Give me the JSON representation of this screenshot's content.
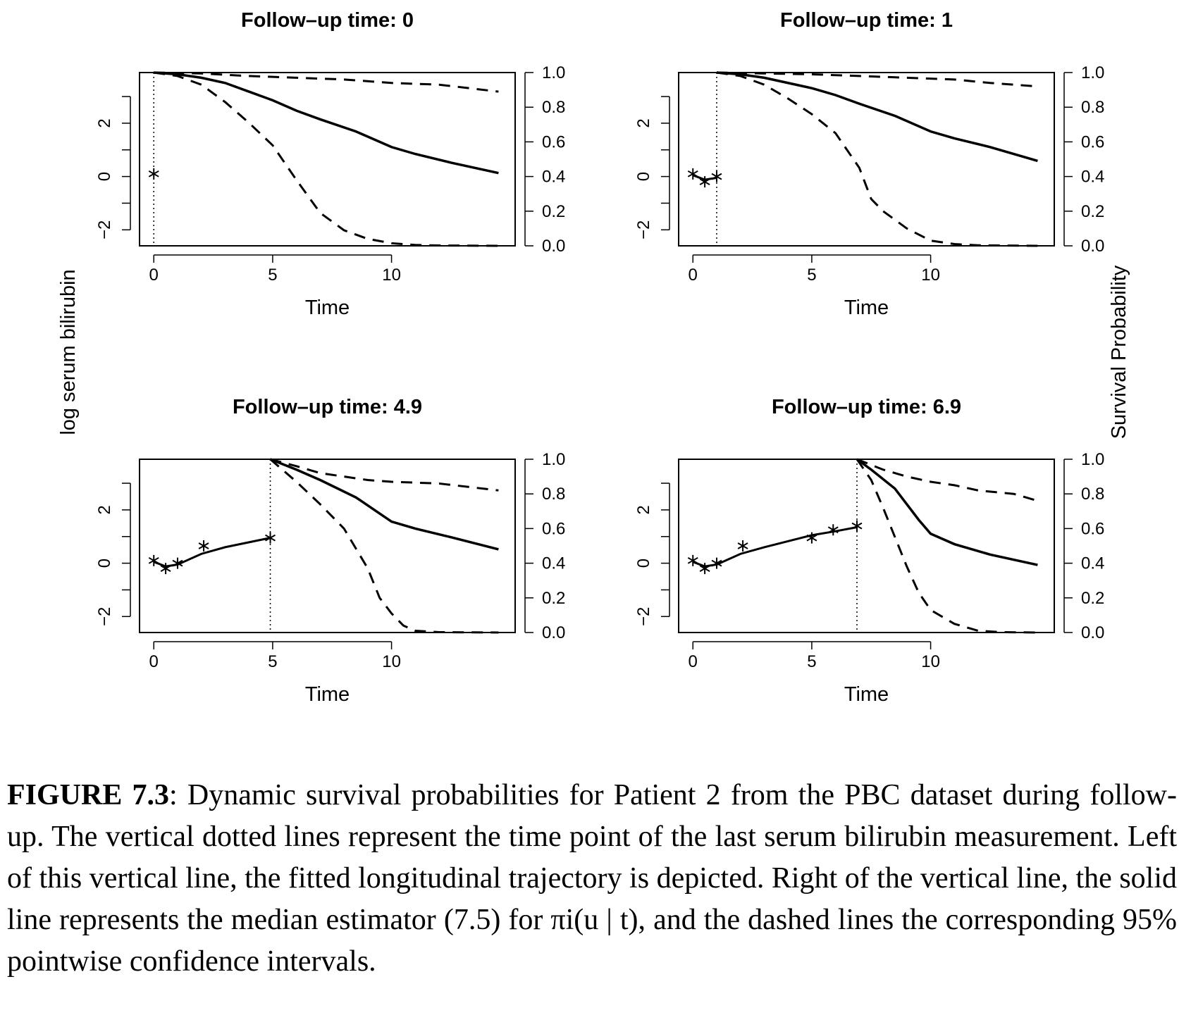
{
  "y_left_label": "log serum bilirubin",
  "y_right_label": "Survival Probability",
  "caption": {
    "label": "FIGURE 7.3",
    "text": ": Dynamic survival probabilities for Patient 2 from the PBC dataset during follow-up. The vertical dotted lines represent the time point of the last serum bilirubin measurement. Left of this vertical line, the fitted longitudinal trajectory is depicted. Right of the vertical line, the solid line represents the median estimator (7.5) for πi(u | t), and the dashed lines the corresponding 95% pointwise confidence intervals."
  },
  "chart_data": [
    {
      "type": "line",
      "title": "Follow–up time: 0",
      "xlabel": "Time",
      "xlim": [
        -0.6,
        15.2
      ],
      "ylim_left": [
        -2.6,
        3.9
      ],
      "ylim_right": [
        0,
        1
      ],
      "x_ticks": [
        "0",
        "5",
        "10"
      ],
      "y_left_ticks": [
        "−2",
        "0",
        "2"
      ],
      "y_right_ticks": [
        "0.0",
        "0.2",
        "0.4",
        "0.6",
        "0.8",
        "1.0"
      ],
      "followup_time": 0,
      "observations": [
        [
          0,
          0.1
        ]
      ],
      "fitted_trajectory": [],
      "survival_median": [
        [
          0,
          1.0
        ],
        [
          1,
          0.99
        ],
        [
          2,
          0.97
        ],
        [
          3,
          0.94
        ],
        [
          4,
          0.89
        ],
        [
          5,
          0.84
        ],
        [
          6,
          0.78
        ],
        [
          7,
          0.73
        ],
        [
          8.5,
          0.66
        ],
        [
          10,
          0.57
        ],
        [
          11,
          0.53
        ],
        [
          12.5,
          0.48
        ],
        [
          14.5,
          0.42
        ]
      ],
      "survival_lower": [
        [
          0,
          1.0
        ],
        [
          1,
          0.98
        ],
        [
          2,
          0.93
        ],
        [
          3,
          0.83
        ],
        [
          4,
          0.71
        ],
        [
          5,
          0.58
        ],
        [
          6,
          0.38
        ],
        [
          7,
          0.19
        ],
        [
          8,
          0.09
        ],
        [
          9,
          0.04
        ],
        [
          10,
          0.015
        ],
        [
          11,
          0.005
        ],
        [
          12,
          0.002
        ],
        [
          14.5,
          0.0
        ]
      ],
      "survival_upper": [
        [
          0,
          1.0
        ],
        [
          2,
          0.995
        ],
        [
          4,
          0.98
        ],
        [
          6,
          0.97
        ],
        [
          8,
          0.96
        ],
        [
          10,
          0.94
        ],
        [
          12,
          0.93
        ],
        [
          14.5,
          0.89
        ]
      ]
    },
    {
      "type": "line",
      "title": "Follow–up time: 1",
      "xlabel": "Time",
      "xlim": [
        -0.6,
        15.2
      ],
      "ylim_left": [
        -2.6,
        3.9
      ],
      "ylim_right": [
        0,
        1
      ],
      "x_ticks": [
        "0",
        "5",
        "10"
      ],
      "y_left_ticks": [
        "−2",
        "0",
        "2"
      ],
      "y_right_ticks": [
        "0.0",
        "0.2",
        "0.4",
        "0.6",
        "0.8",
        "1.0"
      ],
      "followup_time": 1,
      "observations": [
        [
          0,
          0.1
        ],
        [
          0.5,
          -0.2
        ],
        [
          1,
          0.0
        ]
      ],
      "fitted_trajectory": [
        [
          0,
          0.05
        ],
        [
          0.5,
          -0.12
        ],
        [
          1,
          -0.05
        ]
      ],
      "survival_median": [
        [
          1,
          1.0
        ],
        [
          2,
          0.99
        ],
        [
          3,
          0.97
        ],
        [
          4,
          0.94
        ],
        [
          5,
          0.91
        ],
        [
          6,
          0.87
        ],
        [
          7,
          0.82
        ],
        [
          8.5,
          0.75
        ],
        [
          10,
          0.66
        ],
        [
          11,
          0.62
        ],
        [
          12.5,
          0.57
        ],
        [
          14.5,
          0.49
        ]
      ],
      "survival_lower": [
        [
          1,
          1.0
        ],
        [
          2,
          0.98
        ],
        [
          3,
          0.93
        ],
        [
          4,
          0.85
        ],
        [
          5,
          0.76
        ],
        [
          6,
          0.65
        ],
        [
          7,
          0.45
        ],
        [
          7.5,
          0.27
        ],
        [
          8,
          0.2
        ],
        [
          9,
          0.1
        ],
        [
          10,
          0.03
        ],
        [
          11,
          0.01
        ],
        [
          12,
          0.003
        ],
        [
          14.5,
          0.0
        ]
      ],
      "survival_upper": [
        [
          1,
          1.0
        ],
        [
          3,
          0.995
        ],
        [
          5,
          0.99
        ],
        [
          7,
          0.98
        ],
        [
          9,
          0.97
        ],
        [
          11,
          0.96
        ],
        [
          12.5,
          0.94
        ],
        [
          14.5,
          0.92
        ]
      ]
    },
    {
      "type": "line",
      "title": "Follow–up time: 4.9",
      "xlabel": "Time",
      "xlim": [
        -0.6,
        15.2
      ],
      "ylim_left": [
        -2.6,
        3.9
      ],
      "ylim_right": [
        0,
        1
      ],
      "x_ticks": [
        "0",
        "5",
        "10"
      ],
      "y_left_ticks": [
        "−2",
        "0",
        "2"
      ],
      "y_right_ticks": [
        "0.0",
        "0.2",
        "0.4",
        "0.6",
        "0.8",
        "1.0"
      ],
      "followup_time": 4.9,
      "observations": [
        [
          0,
          0.1
        ],
        [
          0.5,
          -0.2
        ],
        [
          1,
          0.0
        ],
        [
          2.1,
          0.65
        ],
        [
          4.9,
          0.95
        ]
      ],
      "fitted_trajectory": [
        [
          0,
          0.05
        ],
        [
          0.5,
          -0.12
        ],
        [
          1,
          -0.05
        ],
        [
          2,
          0.35
        ],
        [
          3,
          0.6
        ],
        [
          4.9,
          0.95
        ]
      ],
      "survival_median": [
        [
          4.9,
          1.0
        ],
        [
          6,
          0.94
        ],
        [
          7,
          0.88
        ],
        [
          8.5,
          0.78
        ],
        [
          10,
          0.64
        ],
        [
          11,
          0.6
        ],
        [
          12.5,
          0.55
        ],
        [
          14.5,
          0.48
        ]
      ],
      "survival_lower": [
        [
          4.9,
          1.0
        ],
        [
          6,
          0.87
        ],
        [
          7,
          0.74
        ],
        [
          8,
          0.6
        ],
        [
          9,
          0.37
        ],
        [
          9.5,
          0.2
        ],
        [
          10,
          0.11
        ],
        [
          10.5,
          0.04
        ],
        [
          11,
          0.01
        ],
        [
          12,
          0.002
        ],
        [
          14.5,
          0.0
        ]
      ],
      "survival_upper": [
        [
          4.9,
          1.0
        ],
        [
          6,
          0.96
        ],
        [
          7,
          0.92
        ],
        [
          8,
          0.9
        ],
        [
          9,
          0.88
        ],
        [
          10,
          0.87
        ],
        [
          12,
          0.86
        ],
        [
          14.5,
          0.82
        ]
      ]
    },
    {
      "type": "line",
      "title": "Follow–up time: 6.9",
      "xlabel": "Time",
      "xlim": [
        -0.6,
        15.2
      ],
      "ylim_left": [
        -2.6,
        3.9
      ],
      "ylim_right": [
        0,
        1
      ],
      "x_ticks": [
        "0",
        "5",
        "10"
      ],
      "y_left_ticks": [
        "−2",
        "0",
        "2"
      ],
      "y_right_ticks": [
        "0.0",
        "0.2",
        "0.4",
        "0.6",
        "0.8",
        "1.0"
      ],
      "followup_time": 6.9,
      "observations": [
        [
          0,
          0.1
        ],
        [
          0.5,
          -0.2
        ],
        [
          1,
          0.0
        ],
        [
          2.1,
          0.65
        ],
        [
          5,
          0.95
        ],
        [
          5.9,
          1.25
        ],
        [
          6.9,
          1.4
        ]
      ],
      "fitted_trajectory": [
        [
          0,
          0.05
        ],
        [
          0.5,
          -0.12
        ],
        [
          1,
          -0.05
        ],
        [
          2,
          0.35
        ],
        [
          3,
          0.6
        ],
        [
          5,
          1.05
        ],
        [
          6,
          1.2
        ],
        [
          6.9,
          1.35
        ]
      ],
      "survival_median": [
        [
          6.9,
          1.0
        ],
        [
          7.5,
          0.94
        ],
        [
          8.5,
          0.83
        ],
        [
          9.5,
          0.65
        ],
        [
          10,
          0.57
        ],
        [
          11,
          0.51
        ],
        [
          12.5,
          0.45
        ],
        [
          14.5,
          0.39
        ]
      ],
      "survival_lower": [
        [
          6.9,
          1.0
        ],
        [
          7.5,
          0.88
        ],
        [
          8,
          0.72
        ],
        [
          8.5,
          0.55
        ],
        [
          9,
          0.38
        ],
        [
          9.5,
          0.23
        ],
        [
          10,
          0.13
        ],
        [
          11,
          0.05
        ],
        [
          12,
          0.01
        ],
        [
          13,
          0.002
        ],
        [
          14.5,
          0.0
        ]
      ],
      "survival_upper": [
        [
          6.9,
          1.0
        ],
        [
          8,
          0.94
        ],
        [
          9,
          0.9
        ],
        [
          10,
          0.87
        ],
        [
          11,
          0.85
        ],
        [
          12,
          0.82
        ],
        [
          13.5,
          0.8
        ],
        [
          14.5,
          0.76
        ]
      ]
    }
  ]
}
